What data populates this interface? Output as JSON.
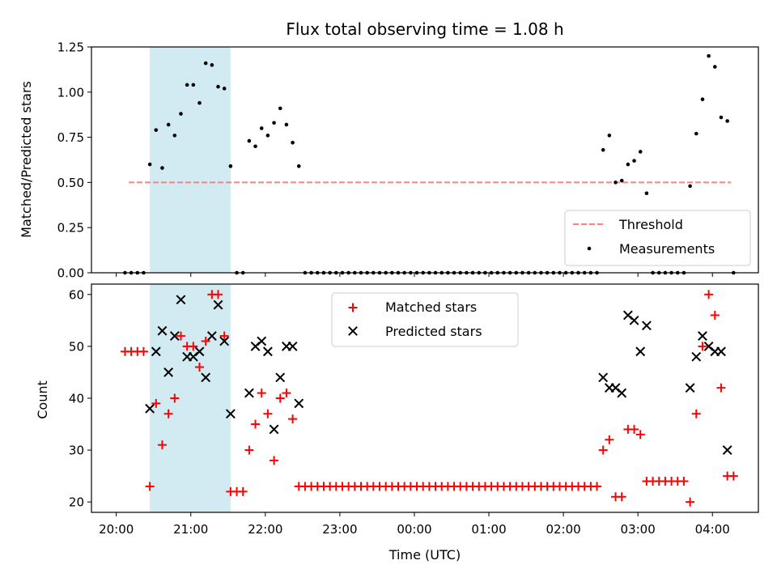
{
  "chart_data": [
    {
      "type": "scatter",
      "title": "Flux total observing time = 1.08 h",
      "xlabel": "",
      "ylabel": "Matched/Predicted stars",
      "ylim": [
        0,
        1.25
      ],
      "y_ticks": [
        "0.00",
        "0.25",
        "0.50",
        "0.75",
        "1.00",
        "1.25"
      ],
      "y_tick_values": [
        0,
        0.25,
        0.5,
        0.75,
        1.0,
        1.25
      ],
      "highlight_span": {
        "start": "20:27",
        "end": "21:32",
        "color": "#add8e6"
      },
      "threshold": {
        "name": "Threshold",
        "value": 0.5,
        "x_start": "20:10",
        "x_end": "04:15",
        "color": "#ff7f7f"
      },
      "legend": {
        "placement": "lower-right",
        "entries": [
          "Threshold",
          "Measurements"
        ]
      },
      "series": [
        {
          "name": "Measurements",
          "color": "#000000",
          "marker": "dot",
          "points": [
            [
              "20:07",
              0
            ],
            [
              "20:12",
              0
            ],
            [
              "20:17",
              0
            ],
            [
              "20:22",
              0
            ],
            [
              "20:27",
              0.6
            ],
            [
              "20:32",
              0.79
            ],
            [
              "20:37",
              0.58
            ],
            [
              "20:42",
              0.82
            ],
            [
              "20:47",
              0.76
            ],
            [
              "20:52",
              0.88
            ],
            [
              "20:57",
              1.04
            ],
            [
              "21:02",
              1.04
            ],
            [
              "21:07",
              0.94
            ],
            [
              "21:12",
              1.16
            ],
            [
              "21:17",
              1.15
            ],
            [
              "21:22",
              1.03
            ],
            [
              "21:27",
              1.02
            ],
            [
              "21:32",
              0.59
            ],
            [
              "21:37",
              0
            ],
            [
              "21:42",
              0
            ],
            [
              "21:47",
              0.73
            ],
            [
              "21:52",
              0.7
            ],
            [
              "21:57",
              0.8
            ],
            [
              "22:02",
              0.76
            ],
            [
              "22:07",
              0.83
            ],
            [
              "22:12",
              0.91
            ],
            [
              "22:17",
              0.82
            ],
            [
              "22:22",
              0.72
            ],
            [
              "22:27",
              0.59
            ],
            [
              "22:32",
              0
            ],
            [
              "22:37",
              0
            ],
            [
              "22:42",
              0
            ],
            [
              "22:47",
              0
            ],
            [
              "22:52",
              0
            ],
            [
              "22:57",
              0
            ],
            [
              "23:02",
              0
            ],
            [
              "23:07",
              0
            ],
            [
              "23:12",
              0
            ],
            [
              "23:17",
              0
            ],
            [
              "23:22",
              0
            ],
            [
              "23:27",
              0
            ],
            [
              "23:32",
              0
            ],
            [
              "23:37",
              0
            ],
            [
              "23:42",
              0
            ],
            [
              "23:47",
              0
            ],
            [
              "23:52",
              0
            ],
            [
              "23:57",
              0
            ],
            [
              "00:02",
              0
            ],
            [
              "00:07",
              0
            ],
            [
              "00:12",
              0
            ],
            [
              "00:17",
              0
            ],
            [
              "00:22",
              0
            ],
            [
              "00:27",
              0
            ],
            [
              "00:32",
              0
            ],
            [
              "00:37",
              0
            ],
            [
              "00:42",
              0
            ],
            [
              "00:47",
              0
            ],
            [
              "00:52",
              0
            ],
            [
              "00:57",
              0
            ],
            [
              "01:02",
              0
            ],
            [
              "01:07",
              0
            ],
            [
              "01:12",
              0
            ],
            [
              "01:17",
              0
            ],
            [
              "01:22",
              0
            ],
            [
              "01:27",
              0
            ],
            [
              "01:32",
              0
            ],
            [
              "01:37",
              0
            ],
            [
              "01:42",
              0
            ],
            [
              "01:47",
              0
            ],
            [
              "01:52",
              0
            ],
            [
              "01:57",
              0
            ],
            [
              "02:02",
              0
            ],
            [
              "02:07",
              0
            ],
            [
              "02:12",
              0
            ],
            [
              "02:17",
              0
            ],
            [
              "02:22",
              0
            ],
            [
              "02:27",
              0
            ],
            [
              "02:32",
              0.68
            ],
            [
              "02:37",
              0.76
            ],
            [
              "02:42",
              0.5
            ],
            [
              "02:47",
              0.51
            ],
            [
              "02:52",
              0.6
            ],
            [
              "02:57",
              0.62
            ],
            [
              "03:02",
              0.67
            ],
            [
              "03:07",
              0.44
            ],
            [
              "03:12",
              0
            ],
            [
              "03:17",
              0
            ],
            [
              "03:22",
              0
            ],
            [
              "03:27",
              0
            ],
            [
              "03:32",
              0
            ],
            [
              "03:37",
              0
            ],
            [
              "03:42",
              0.48
            ],
            [
              "03:47",
              0.77
            ],
            [
              "03:52",
              0.96
            ],
            [
              "03:57",
              1.2
            ],
            [
              "04:02",
              1.14
            ],
            [
              "04:07",
              0.86
            ],
            [
              "04:12",
              0.84
            ],
            [
              "04:17",
              0
            ]
          ]
        }
      ]
    },
    {
      "type": "scatter",
      "title": "",
      "xlabel": "Time (UTC)",
      "ylabel": "Count",
      "ylim": [
        18,
        62
      ],
      "y_ticks": [
        "20",
        "30",
        "40",
        "50",
        "60"
      ],
      "y_tick_values": [
        20,
        30,
        40,
        50,
        60
      ],
      "x_ticks": [
        "20:00",
        "21:00",
        "22:00",
        "23:00",
        "00:00",
        "01:00",
        "02:00",
        "03:00",
        "04:00"
      ],
      "highlight_span": {
        "start": "20:27",
        "end": "21:32",
        "color": "#add8e6"
      },
      "legend": {
        "placement": "upper-center",
        "entries": [
          "Matched stars",
          "Predicted stars"
        ]
      },
      "series": [
        {
          "name": "Matched stars",
          "color": "#ff0000",
          "marker": "plus",
          "points": [
            [
              "20:07",
              49
            ],
            [
              "20:12",
              49
            ],
            [
              "20:17",
              49
            ],
            [
              "20:22",
              49
            ],
            [
              "20:27",
              23
            ],
            [
              "20:32",
              39
            ],
            [
              "20:37",
              31
            ],
            [
              "20:42",
              37
            ],
            [
              "20:47",
              40
            ],
            [
              "20:52",
              52
            ],
            [
              "20:57",
              50
            ],
            [
              "21:02",
              50
            ],
            [
              "21:07",
              46
            ],
            [
              "21:12",
              51
            ],
            [
              "21:17",
              60
            ],
            [
              "21:22",
              60
            ],
            [
              "21:27",
              52
            ],
            [
              "21:32",
              22
            ],
            [
              "21:37",
              22
            ],
            [
              "21:42",
              22
            ],
            [
              "21:47",
              30
            ],
            [
              "21:52",
              35
            ],
            [
              "21:57",
              41
            ],
            [
              "22:02",
              37
            ],
            [
              "22:07",
              28
            ],
            [
              "22:12",
              40
            ],
            [
              "22:17",
              41
            ],
            [
              "22:22",
              36
            ],
            [
              "22:27",
              23
            ],
            [
              "22:32",
              23
            ],
            [
              "22:37",
              23
            ],
            [
              "22:42",
              23
            ],
            [
              "22:47",
              23
            ],
            [
              "22:52",
              23
            ],
            [
              "22:57",
              23
            ],
            [
              "23:02",
              23
            ],
            [
              "23:07",
              23
            ],
            [
              "23:12",
              23
            ],
            [
              "23:17",
              23
            ],
            [
              "23:22",
              23
            ],
            [
              "23:27",
              23
            ],
            [
              "23:32",
              23
            ],
            [
              "23:37",
              23
            ],
            [
              "23:42",
              23
            ],
            [
              "23:47",
              23
            ],
            [
              "23:52",
              23
            ],
            [
              "23:57",
              23
            ],
            [
              "00:02",
              23
            ],
            [
              "00:07",
              23
            ],
            [
              "00:12",
              23
            ],
            [
              "00:17",
              23
            ],
            [
              "00:22",
              23
            ],
            [
              "00:27",
              23
            ],
            [
              "00:32",
              23
            ],
            [
              "00:37",
              23
            ],
            [
              "00:42",
              23
            ],
            [
              "00:47",
              23
            ],
            [
              "00:52",
              23
            ],
            [
              "00:57",
              23
            ],
            [
              "01:02",
              23
            ],
            [
              "01:07",
              23
            ],
            [
              "01:12",
              23
            ],
            [
              "01:17",
              23
            ],
            [
              "01:22",
              23
            ],
            [
              "01:27",
              23
            ],
            [
              "01:32",
              23
            ],
            [
              "01:37",
              23
            ],
            [
              "01:42",
              23
            ],
            [
              "01:47",
              23
            ],
            [
              "01:52",
              23
            ],
            [
              "01:57",
              23
            ],
            [
              "02:02",
              23
            ],
            [
              "02:07",
              23
            ],
            [
              "02:12",
              23
            ],
            [
              "02:17",
              23
            ],
            [
              "02:22",
              23
            ],
            [
              "02:27",
              23
            ],
            [
              "02:32",
              30
            ],
            [
              "02:37",
              32
            ],
            [
              "02:42",
              21
            ],
            [
              "02:47",
              21
            ],
            [
              "02:52",
              34
            ],
            [
              "02:57",
              34
            ],
            [
              "03:02",
              33
            ],
            [
              "03:07",
              24
            ],
            [
              "03:12",
              24
            ],
            [
              "03:17",
              24
            ],
            [
              "03:22",
              24
            ],
            [
              "03:27",
              24
            ],
            [
              "03:32",
              24
            ],
            [
              "03:37",
              24
            ],
            [
              "03:42",
              20
            ],
            [
              "03:47",
              37
            ],
            [
              "03:52",
              50
            ],
            [
              "03:57",
              60
            ],
            [
              "04:02",
              56
            ],
            [
              "04:07",
              42
            ],
            [
              "04:12",
              25
            ],
            [
              "04:17",
              25
            ]
          ]
        },
        {
          "name": "Predicted stars",
          "color": "#000000",
          "marker": "x",
          "points": [
            [
              "20:27",
              38
            ],
            [
              "20:32",
              49
            ],
            [
              "20:37",
              53
            ],
            [
              "20:42",
              45
            ],
            [
              "20:47",
              52
            ],
            [
              "20:52",
              59
            ],
            [
              "20:57",
              48
            ],
            [
              "21:02",
              48
            ],
            [
              "21:07",
              49
            ],
            [
              "21:12",
              44
            ],
            [
              "21:17",
              52
            ],
            [
              "21:22",
              58
            ],
            [
              "21:27",
              51
            ],
            [
              "21:32",
              37
            ],
            [
              "21:47",
              41
            ],
            [
              "21:52",
              50
            ],
            [
              "21:57",
              51
            ],
            [
              "22:02",
              49
            ],
            [
              "22:07",
              34
            ],
            [
              "22:12",
              44
            ],
            [
              "22:17",
              50
            ],
            [
              "22:22",
              50
            ],
            [
              "22:27",
              39
            ],
            [
              "02:32",
              44
            ],
            [
              "02:37",
              42
            ],
            [
              "02:42",
              42
            ],
            [
              "02:47",
              41
            ],
            [
              "02:52",
              56
            ],
            [
              "02:57",
              55
            ],
            [
              "03:02",
              49
            ],
            [
              "03:07",
              54
            ],
            [
              "03:42",
              42
            ],
            [
              "03:47",
              48
            ],
            [
              "03:52",
              52
            ],
            [
              "03:57",
              50
            ],
            [
              "04:02",
              49
            ],
            [
              "04:07",
              49
            ],
            [
              "04:12",
              30
            ]
          ]
        }
      ]
    }
  ]
}
